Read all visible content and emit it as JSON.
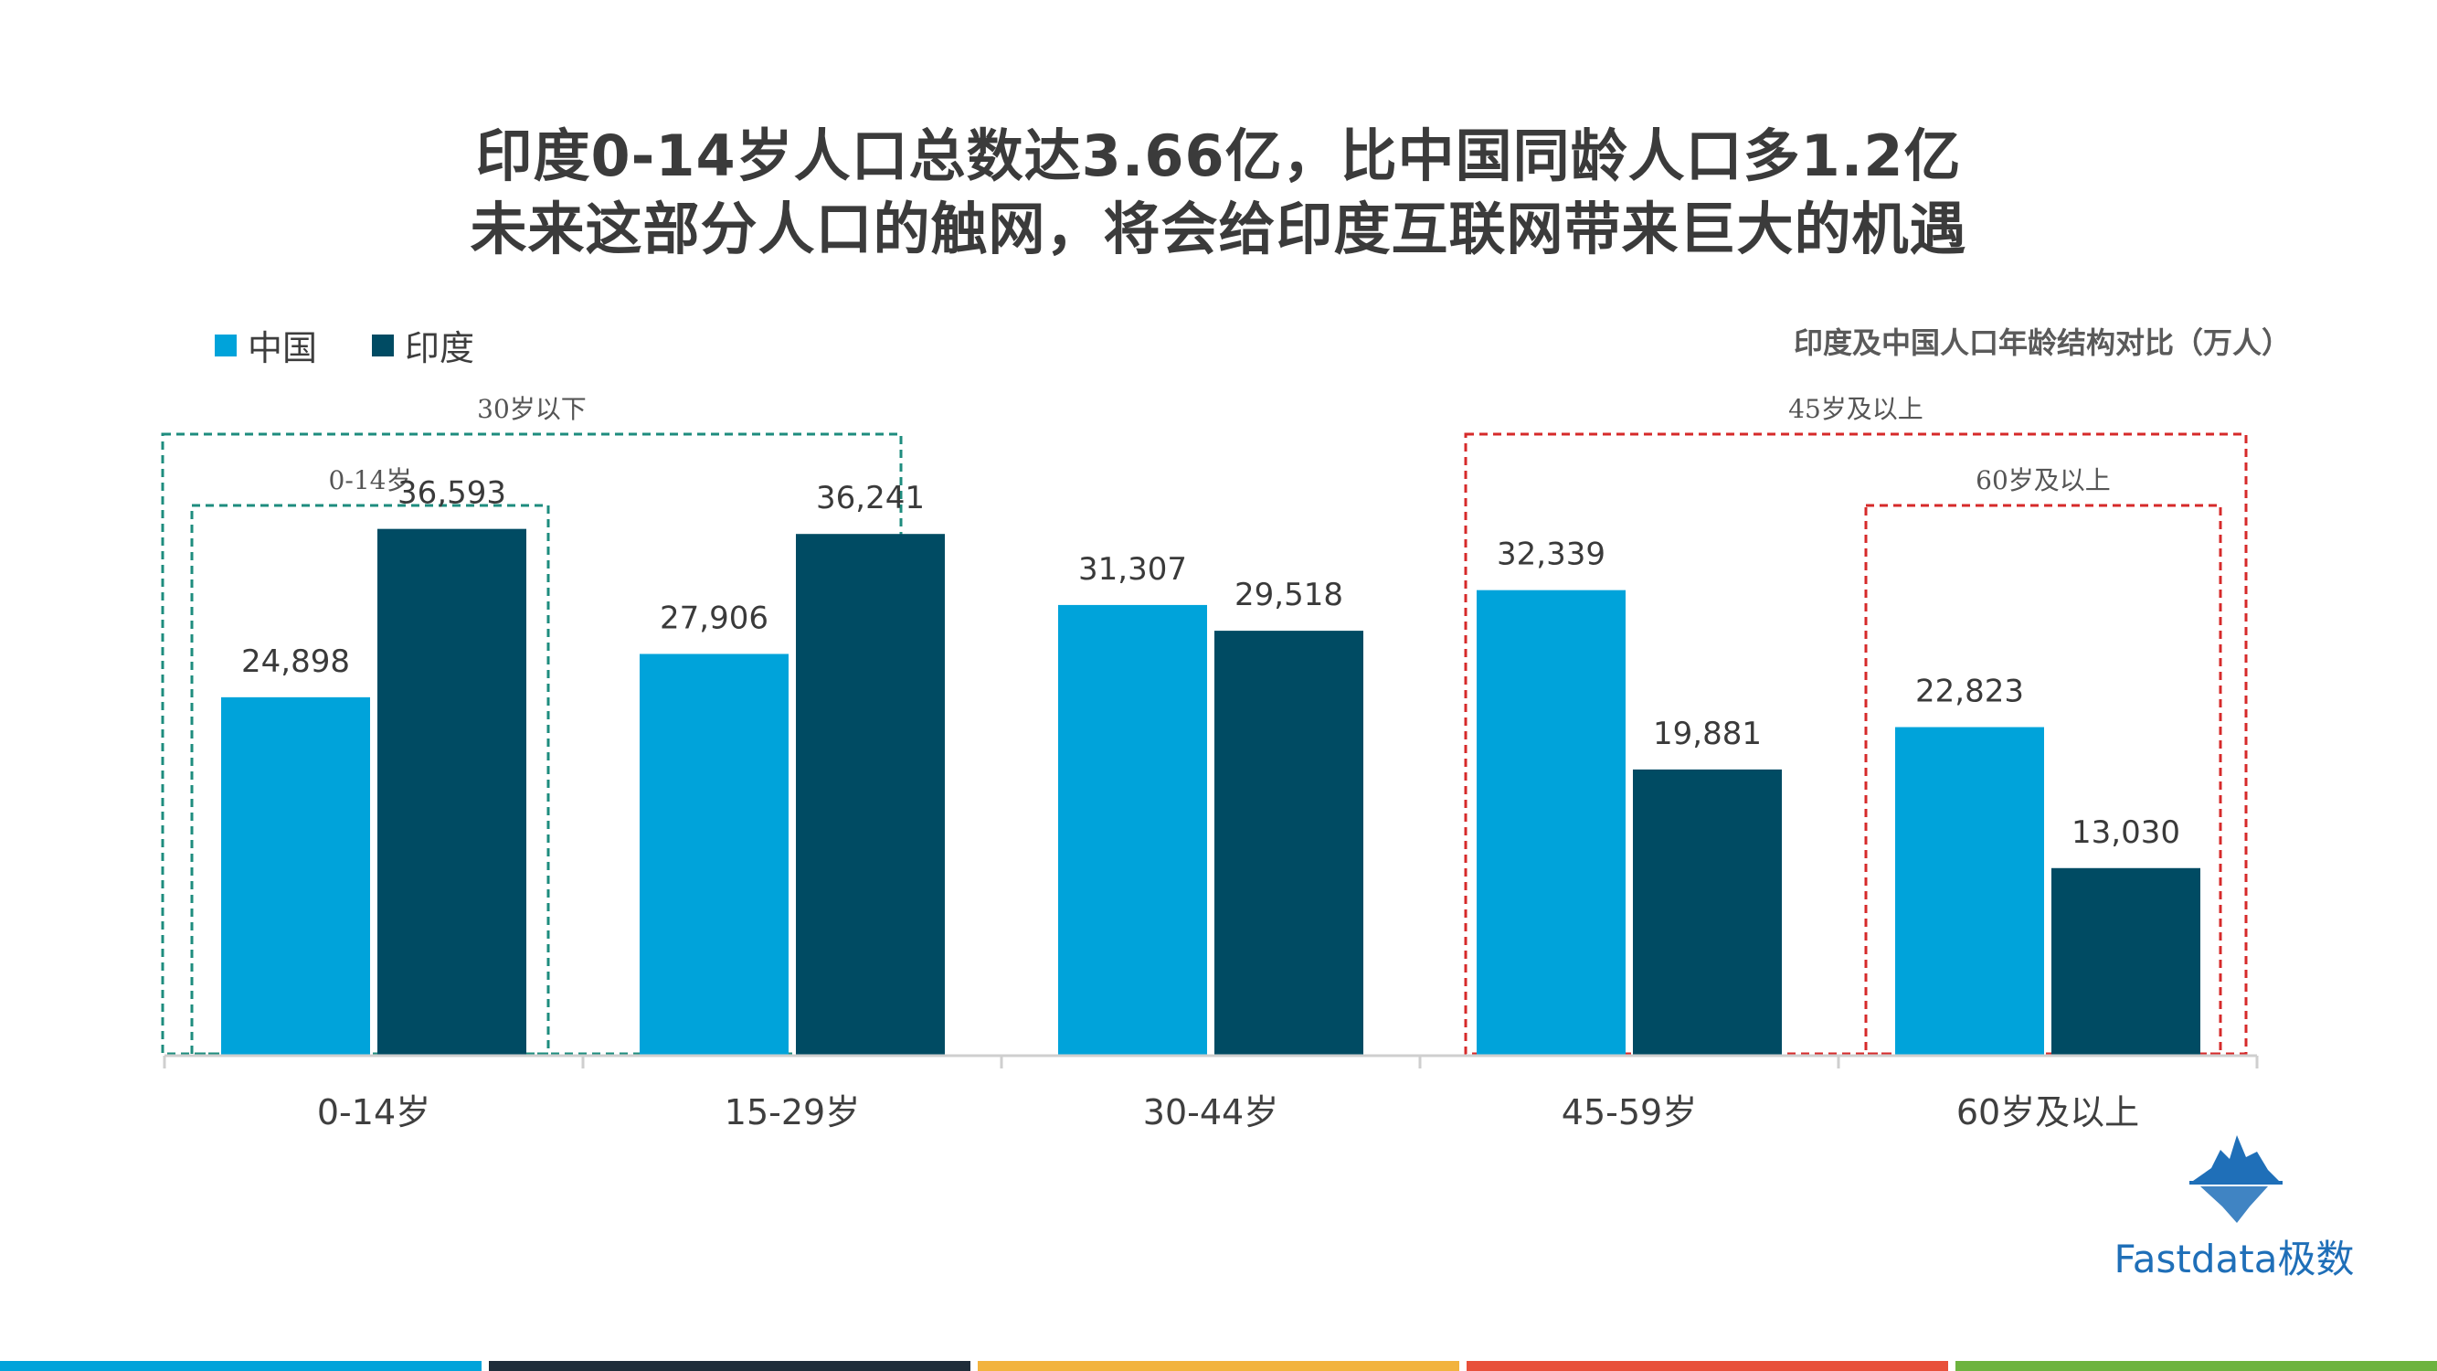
{
  "title": {
    "line1": "印度0-14岁人口总数达3.66亿，比中国同龄人口多1.2亿",
    "line2": "未来这部分人口的触网，将会给印度互联网带来巨大的机遇"
  },
  "subtitle": "印度及中国人口年龄结构对比（万人）",
  "colors": {
    "china": "#00A3DA",
    "india": "#004B63",
    "green_box": "#1E8C7E",
    "red_box": "#D62A2A"
  },
  "chart_data": {
    "type": "bar",
    "categories": [
      "0-14岁",
      "15-29岁",
      "30-44岁",
      "45-59岁",
      "60岁及以上"
    ],
    "series": [
      {
        "name": "中国",
        "values": [
          24898,
          27906,
          31307,
          32339,
          22823
        ]
      },
      {
        "name": "印度",
        "values": [
          36593,
          36241,
          29518,
          19881,
          13030
        ]
      }
    ],
    "value_labels": {
      "china": [
        "24,898",
        "27,906",
        "31,307",
        "32,339",
        "22,823"
      ],
      "india": [
        "36,593",
        "36,241",
        "29,518",
        "19,881",
        "13,030"
      ]
    },
    "ylim": [
      0,
      40000
    ],
    "grid": false,
    "legend_position": "top-left",
    "annotations": [
      {
        "label": "30岁以下",
        "categories": [
          0,
          1
        ],
        "style": "green-dashed"
      },
      {
        "label": "0-14岁",
        "categories": [
          0
        ],
        "style": "green-dashed"
      },
      {
        "label": "45岁及以上",
        "categories": [
          3,
          4
        ],
        "style": "red-dashed"
      },
      {
        "label": "60岁及以上",
        "categories": [
          4
        ],
        "style": "red-dashed"
      }
    ]
  },
  "logo": {
    "text": "Fastdata极数",
    "icon": "iceberg-icon"
  },
  "footer_colors": [
    "#00A3DA",
    "#1F2D3A",
    "#F2B33D",
    "#E8503A",
    "#6DB33F"
  ]
}
